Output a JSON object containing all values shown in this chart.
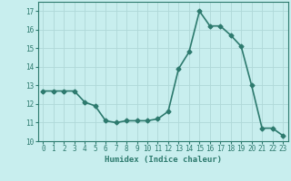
{
  "x": [
    0,
    1,
    2,
    3,
    4,
    5,
    6,
    7,
    8,
    9,
    10,
    11,
    12,
    13,
    14,
    15,
    16,
    17,
    18,
    19,
    20,
    21,
    22,
    23
  ],
  "y": [
    12.7,
    12.7,
    12.7,
    12.7,
    12.1,
    11.9,
    11.1,
    11.0,
    11.1,
    11.1,
    11.1,
    11.2,
    11.6,
    13.9,
    14.8,
    17.0,
    16.2,
    16.2,
    15.7,
    15.1,
    13.0,
    10.7,
    10.7,
    10.3
  ],
  "xlabel": "Humidex (Indice chaleur)",
  "ylim": [
    10,
    17.5
  ],
  "xlim": [
    -0.5,
    23.5
  ],
  "yticks": [
    10,
    11,
    12,
    13,
    14,
    15,
    16,
    17
  ],
  "xticks": [
    0,
    1,
    2,
    3,
    4,
    5,
    6,
    7,
    8,
    9,
    10,
    11,
    12,
    13,
    14,
    15,
    16,
    17,
    18,
    19,
    20,
    21,
    22,
    23
  ],
  "line_color": "#2d7a6e",
  "marker": "D",
  "marker_size": 2.5,
  "bg_color": "#c8eeee",
  "grid_color": "#afd8d8",
  "xlabel_color": "#2d7a6e",
  "tick_color": "#2d7a6e",
  "linewidth": 1.2,
  "tick_fontsize": 5.5,
  "xlabel_fontsize": 6.5
}
